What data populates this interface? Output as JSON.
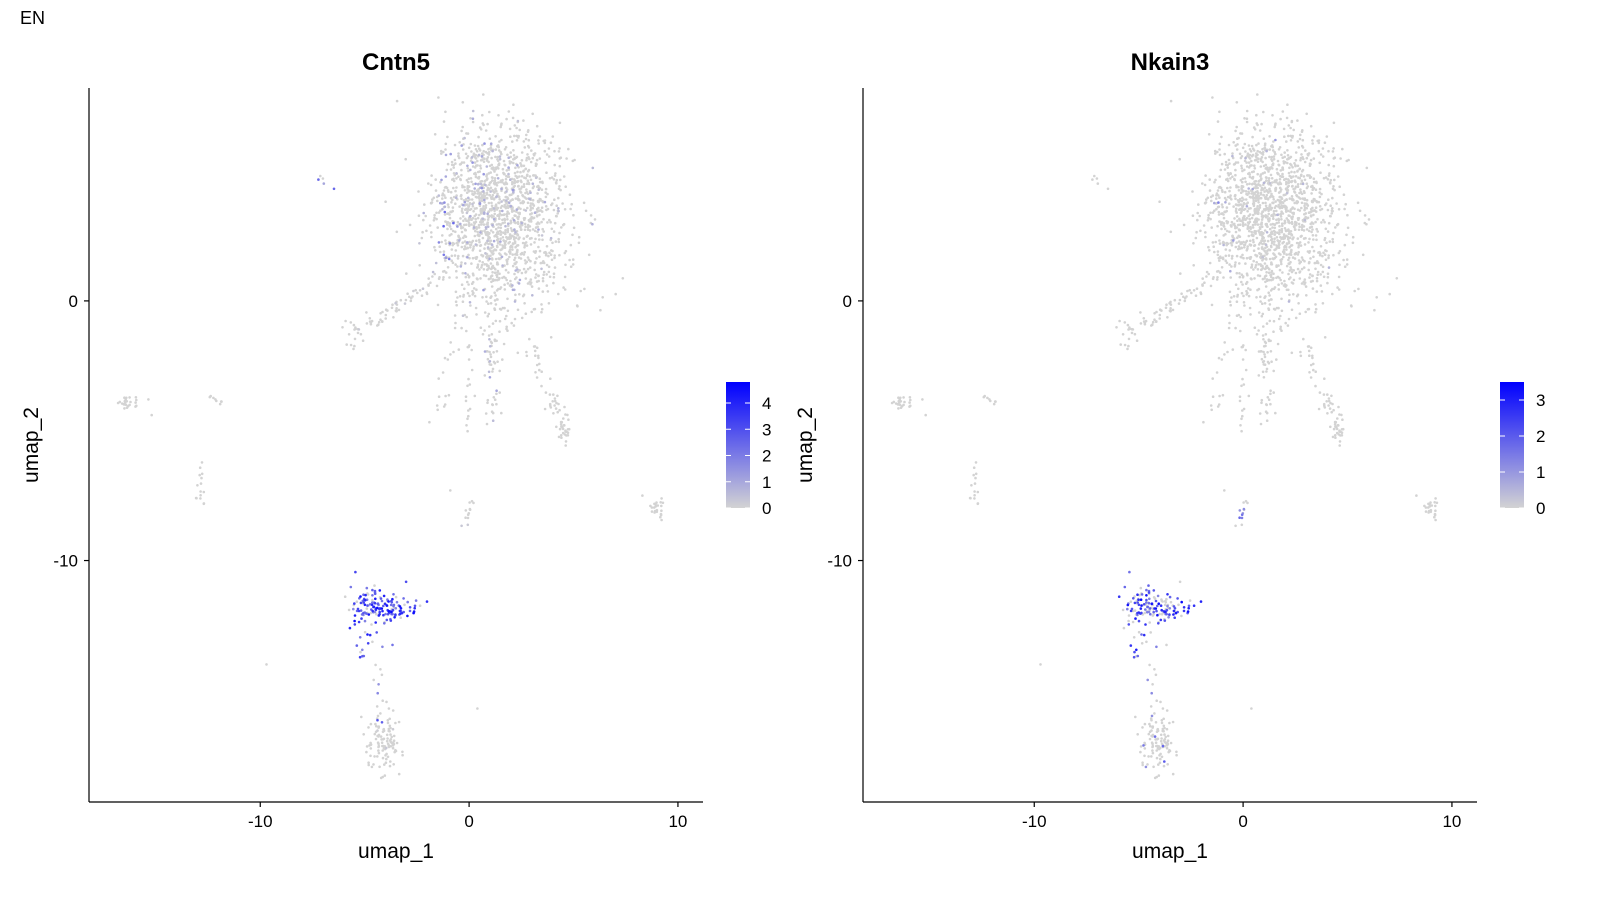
{
  "figure_label": "EN",
  "colors": {
    "low": "#d3d3d3",
    "high": "#0000ff",
    "axis": "#000000",
    "text": "#000000"
  },
  "chart_data": [
    {
      "type": "scatter",
      "title": "Cntn5",
      "xlabel": "umap_1",
      "ylabel": "umap_2",
      "xlim": [
        -18.2,
        11.2
      ],
      "ylim": [
        -19.3,
        8.2
      ],
      "xticks": [
        -10,
        0,
        10
      ],
      "xtick_labels": [
        "-10",
        "0",
        "10"
      ],
      "yticks": [
        -10,
        0
      ],
      "ytick_labels": [
        "-10",
        "0"
      ],
      "grid": false,
      "legend": {
        "position": "right",
        "min": 0,
        "max": 4.8,
        "ticks": [
          0,
          1,
          2,
          3,
          4
        ],
        "tick_labels": [
          "0",
          "1",
          "2",
          "3",
          "4"
        ]
      },
      "clusters": [
        {
          "cx": 1.6,
          "cy": 3.2,
          "sx": 1.6,
          "sy": 1.7,
          "n": 1400,
          "expr_max": 0.9,
          "expr_frac": 0.08
        },
        {
          "cx": 0.6,
          "cy": 4.2,
          "sx": 1.0,
          "sy": 1.2,
          "n": 220,
          "expr_max": 1.5,
          "expr_frac": 0.18
        },
        {
          "cx": -4.5,
          "cy": -11.8,
          "sx": 0.6,
          "sy": 0.5,
          "n": 110,
          "expr_max": 4.6,
          "expr_frac": 0.85
        },
        {
          "cx": -3.3,
          "cy": -11.8,
          "sx": 0.5,
          "sy": 0.22,
          "n": 40,
          "expr_max": 4.6,
          "expr_frac": 0.85
        },
        {
          "cx": -4.1,
          "cy": -17.0,
          "sx": 0.45,
          "sy": 0.55,
          "n": 110,
          "expr_max": 0.3,
          "expr_frac": 0.05
        },
        {
          "cx": -16.3,
          "cy": -3.9,
          "sx": 0.25,
          "sy": 0.15,
          "n": 25,
          "expr_max": 0.0,
          "expr_frac": 0.0
        },
        {
          "cx": -12.2,
          "cy": -3.8,
          "sx": 0.2,
          "sy": 0.12,
          "n": 8,
          "expr_max": 0.0,
          "expr_frac": 0.0
        },
        {
          "cx": -12.9,
          "cy": -7.2,
          "sx": 0.12,
          "sy": 0.4,
          "n": 14,
          "expr_max": 0.0,
          "expr_frac": 0.0
        },
        {
          "cx": 9.0,
          "cy": -8.0,
          "sx": 0.22,
          "sy": 0.22,
          "n": 22,
          "expr_max": 0.0,
          "expr_frac": 0.0
        },
        {
          "cx": -5.6,
          "cy": -1.4,
          "sx": 0.3,
          "sy": 0.3,
          "n": 14,
          "expr_max": 0.3,
          "expr_frac": 0.1
        },
        {
          "cx": 4.6,
          "cy": -4.9,
          "sx": 0.15,
          "sy": 0.35,
          "n": 16,
          "expr_max": 0.0,
          "expr_frac": 0.0
        }
      ],
      "trajectories": [
        {
          "from": [
            -5.4,
            -1.2
          ],
          "to": [
            -1.2,
            1.0
          ],
          "n": 60,
          "spread": 0.15,
          "expr_max": 0.3,
          "expr_frac": 0.05
        },
        {
          "from": [
            -0.2,
            0.6
          ],
          "to": [
            -1.6,
            -4.6
          ],
          "n": 28,
          "spread": 0.2,
          "expr_max": 0.8,
          "expr_frac": 0.1
        },
        {
          "from": [
            1.0,
            0.5
          ],
          "to": [
            1.2,
            -4.8
          ],
          "n": 70,
          "spread": 0.25,
          "expr_max": 1.2,
          "expr_frac": 0.15
        },
        {
          "from": [
            0.0,
            -1.0
          ],
          "to": [
            -0.1,
            -5.2
          ],
          "n": 18,
          "spread": 0.15,
          "expr_max": 0.3,
          "expr_frac": 0.05
        },
        {
          "from": [
            2.9,
            -1.8
          ],
          "to": [
            4.6,
            -5.2
          ],
          "n": 50,
          "spread": 0.2,
          "expr_max": 0.0,
          "expr_frac": 0.0
        },
        {
          "from": [
            0.2,
            -7.5
          ],
          "to": [
            -0.2,
            -8.7
          ],
          "n": 12,
          "spread": 0.1,
          "expr_max": 0.5,
          "expr_frac": 0.1
        },
        {
          "from": [
            -5.1,
            -10.6
          ],
          "to": [
            -5.2,
            -13.8
          ],
          "n": 20,
          "spread": 0.15,
          "expr_max": 4.0,
          "expr_frac": 0.8
        },
        {
          "from": [
            -4.3,
            -14.0
          ],
          "to": [
            -4.3,
            -16.2
          ],
          "n": 10,
          "spread": 0.1,
          "expr_max": 3.0,
          "expr_frac": 0.4
        },
        {
          "from": [
            -7.2,
            4.9
          ],
          "to": [
            -6.5,
            4.2
          ],
          "n": 5,
          "spread": 0.1,
          "expr_max": 2.5,
          "expr_frac": 0.6
        },
        {
          "from": [
            -1.3,
            4.5
          ],
          "to": [
            -1.0,
            1.2
          ],
          "n": 25,
          "spread": 0.3,
          "expr_max": 2.5,
          "expr_frac": 0.5
        }
      ],
      "scattered_points": [
        [
          -9.7,
          -14.0
        ],
        [
          -15.2,
          -4.4
        ],
        [
          -12.7,
          -7.8
        ],
        [
          0.4,
          -15.7
        ],
        [
          8.3,
          -7.5
        ],
        [
          -0.9,
          -7.3
        ]
      ]
    },
    {
      "type": "scatter",
      "title": "Nkain3",
      "xlabel": "umap_1",
      "ylabel": "umap_2",
      "xlim": [
        -18.2,
        11.2
      ],
      "ylim": [
        -19.3,
        8.2
      ],
      "xticks": [
        -10,
        0,
        10
      ],
      "xtick_labels": [
        "-10",
        "0",
        "10"
      ],
      "yticks": [
        -10,
        0
      ],
      "ytick_labels": [
        "-10",
        "0"
      ],
      "grid": false,
      "legend": {
        "position": "right",
        "min": 0,
        "max": 3.5,
        "ticks": [
          0,
          1,
          2,
          3
        ],
        "tick_labels": [
          "0",
          "1",
          "2",
          "3"
        ]
      },
      "clusters": [
        {
          "cx": 1.6,
          "cy": 3.2,
          "sx": 1.6,
          "sy": 1.7,
          "n": 1400,
          "expr_max": 0.6,
          "expr_frac": 0.01
        },
        {
          "cx": 0.6,
          "cy": 4.2,
          "sx": 1.0,
          "sy": 1.2,
          "n": 220,
          "expr_max": 1.0,
          "expr_frac": 0.03
        },
        {
          "cx": -4.5,
          "cy": -11.8,
          "sx": 0.6,
          "sy": 0.5,
          "n": 110,
          "expr_max": 3.4,
          "expr_frac": 0.55
        },
        {
          "cx": -3.3,
          "cy": -11.8,
          "sx": 0.5,
          "sy": 0.22,
          "n": 40,
          "expr_max": 3.4,
          "expr_frac": 0.6
        },
        {
          "cx": -4.1,
          "cy": -17.0,
          "sx": 0.45,
          "sy": 0.55,
          "n": 110,
          "expr_max": 2.5,
          "expr_frac": 0.04
        },
        {
          "cx": -16.3,
          "cy": -3.9,
          "sx": 0.25,
          "sy": 0.15,
          "n": 25,
          "expr_max": 0.0,
          "expr_frac": 0.0
        },
        {
          "cx": -12.2,
          "cy": -3.8,
          "sx": 0.2,
          "sy": 0.12,
          "n": 8,
          "expr_max": 0.0,
          "expr_frac": 0.0
        },
        {
          "cx": -12.9,
          "cy": -7.2,
          "sx": 0.12,
          "sy": 0.4,
          "n": 14,
          "expr_max": 0.0,
          "expr_frac": 0.0
        },
        {
          "cx": 9.0,
          "cy": -8.0,
          "sx": 0.22,
          "sy": 0.22,
          "n": 22,
          "expr_max": 0.0,
          "expr_frac": 0.0
        },
        {
          "cx": -5.6,
          "cy": -1.4,
          "sx": 0.3,
          "sy": 0.3,
          "n": 14,
          "expr_max": 0.0,
          "expr_frac": 0.0
        },
        {
          "cx": 4.6,
          "cy": -4.9,
          "sx": 0.15,
          "sy": 0.35,
          "n": 16,
          "expr_max": 0.0,
          "expr_frac": 0.0
        }
      ],
      "trajectories": [
        {
          "from": [
            -5.4,
            -1.2
          ],
          "to": [
            -1.2,
            1.0
          ],
          "n": 60,
          "spread": 0.15,
          "expr_max": 0.0,
          "expr_frac": 0.0
        },
        {
          "from": [
            -0.2,
            0.6
          ],
          "to": [
            -1.6,
            -4.6
          ],
          "n": 28,
          "spread": 0.2,
          "expr_max": 0.0,
          "expr_frac": 0.0
        },
        {
          "from": [
            1.0,
            0.5
          ],
          "to": [
            1.2,
            -4.8
          ],
          "n": 70,
          "spread": 0.25,
          "expr_max": 0.0,
          "expr_frac": 0.0
        },
        {
          "from": [
            0.0,
            -1.0
          ],
          "to": [
            -0.1,
            -5.2
          ],
          "n": 18,
          "spread": 0.15,
          "expr_max": 0.0,
          "expr_frac": 0.0
        },
        {
          "from": [
            2.9,
            -1.8
          ],
          "to": [
            4.6,
            -5.2
          ],
          "n": 50,
          "spread": 0.2,
          "expr_max": 0.0,
          "expr_frac": 0.0
        },
        {
          "from": [
            0.2,
            -7.5
          ],
          "to": [
            -0.2,
            -8.7
          ],
          "n": 12,
          "spread": 0.1,
          "expr_max": 2.0,
          "expr_frac": 0.25
        },
        {
          "from": [
            -5.1,
            -10.6
          ],
          "to": [
            -5.2,
            -13.8
          ],
          "n": 20,
          "spread": 0.15,
          "expr_max": 3.2,
          "expr_frac": 0.6
        },
        {
          "from": [
            -4.3,
            -14.0
          ],
          "to": [
            -4.3,
            -16.2
          ],
          "n": 10,
          "spread": 0.1,
          "expr_max": 2.5,
          "expr_frac": 0.3
        },
        {
          "from": [
            -7.2,
            4.9
          ],
          "to": [
            -6.5,
            4.2
          ],
          "n": 5,
          "spread": 0.1,
          "expr_max": 0.0,
          "expr_frac": 0.0
        },
        {
          "from": [
            -1.3,
            4.5
          ],
          "to": [
            -1.0,
            1.2
          ],
          "n": 25,
          "spread": 0.3,
          "expr_max": 1.5,
          "expr_frac": 0.1
        }
      ],
      "scattered_points": [
        [
          -9.7,
          -14.0
        ],
        [
          -15.2,
          -4.4
        ],
        [
          -12.7,
          -7.8
        ],
        [
          0.4,
          -15.7
        ],
        [
          8.3,
          -7.5
        ],
        [
          -0.9,
          -7.3
        ]
      ]
    }
  ]
}
